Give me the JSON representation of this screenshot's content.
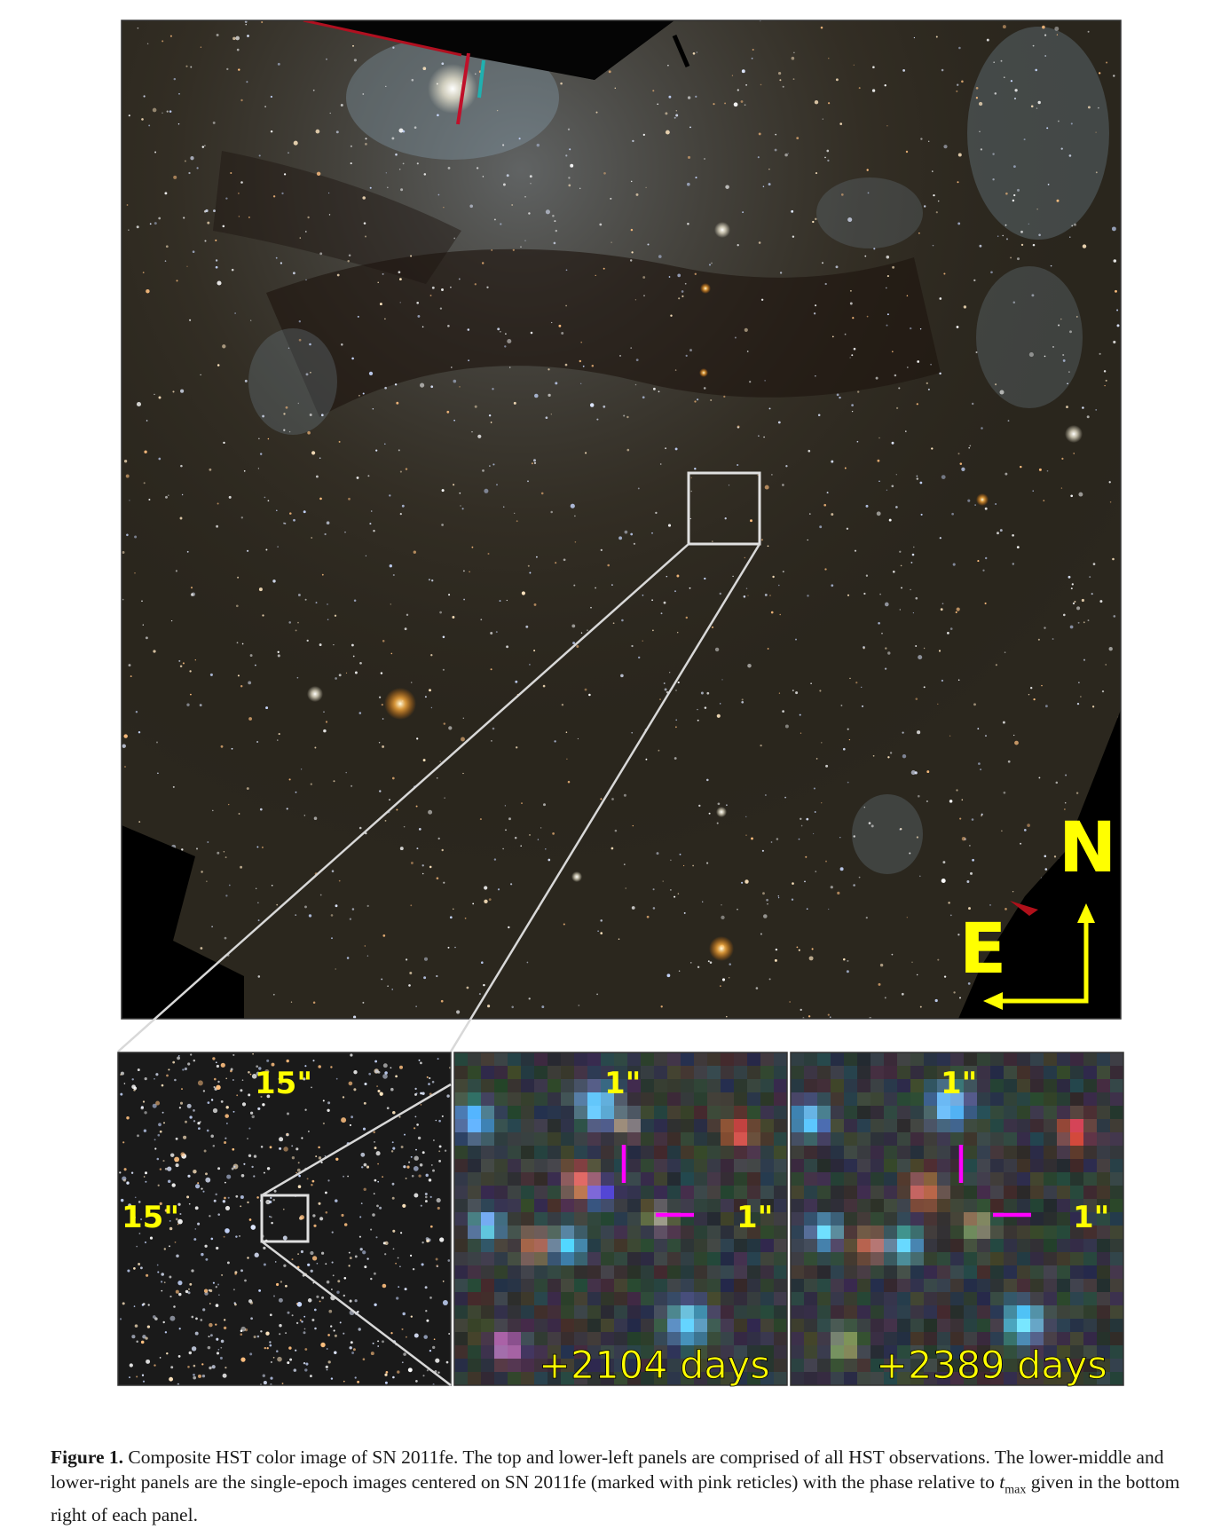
{
  "figure": {
    "top_panel": {
      "north_label": "N",
      "east_label": "E"
    },
    "lower_left": {
      "scale_top": "15\"",
      "scale_left": "15\""
    },
    "lower_middle": {
      "scale_top": "1\"",
      "scale_right": "1\"",
      "phase": "+2104 days"
    },
    "lower_right": {
      "scale_top": "1\"",
      "scale_right": "1\"",
      "phase": "+2389 days"
    },
    "colors": {
      "label": "#ffff00",
      "reticle": "#ff00ff",
      "zoom_lines": "#d8d8d8"
    }
  },
  "caption": {
    "label": "Figure 1.",
    "text_part1": "Composite HST color image of SN 2011fe. The top and lower-left panels are comprised of all HST observations. The lower-middle and lower-right panels are the single-epoch images centered on SN 2011fe (marked with pink reticles) with the phase relative to ",
    "t_symbol": "t",
    "t_subscript": "max",
    "text_part2": " given in the bottom right of each panel."
  }
}
